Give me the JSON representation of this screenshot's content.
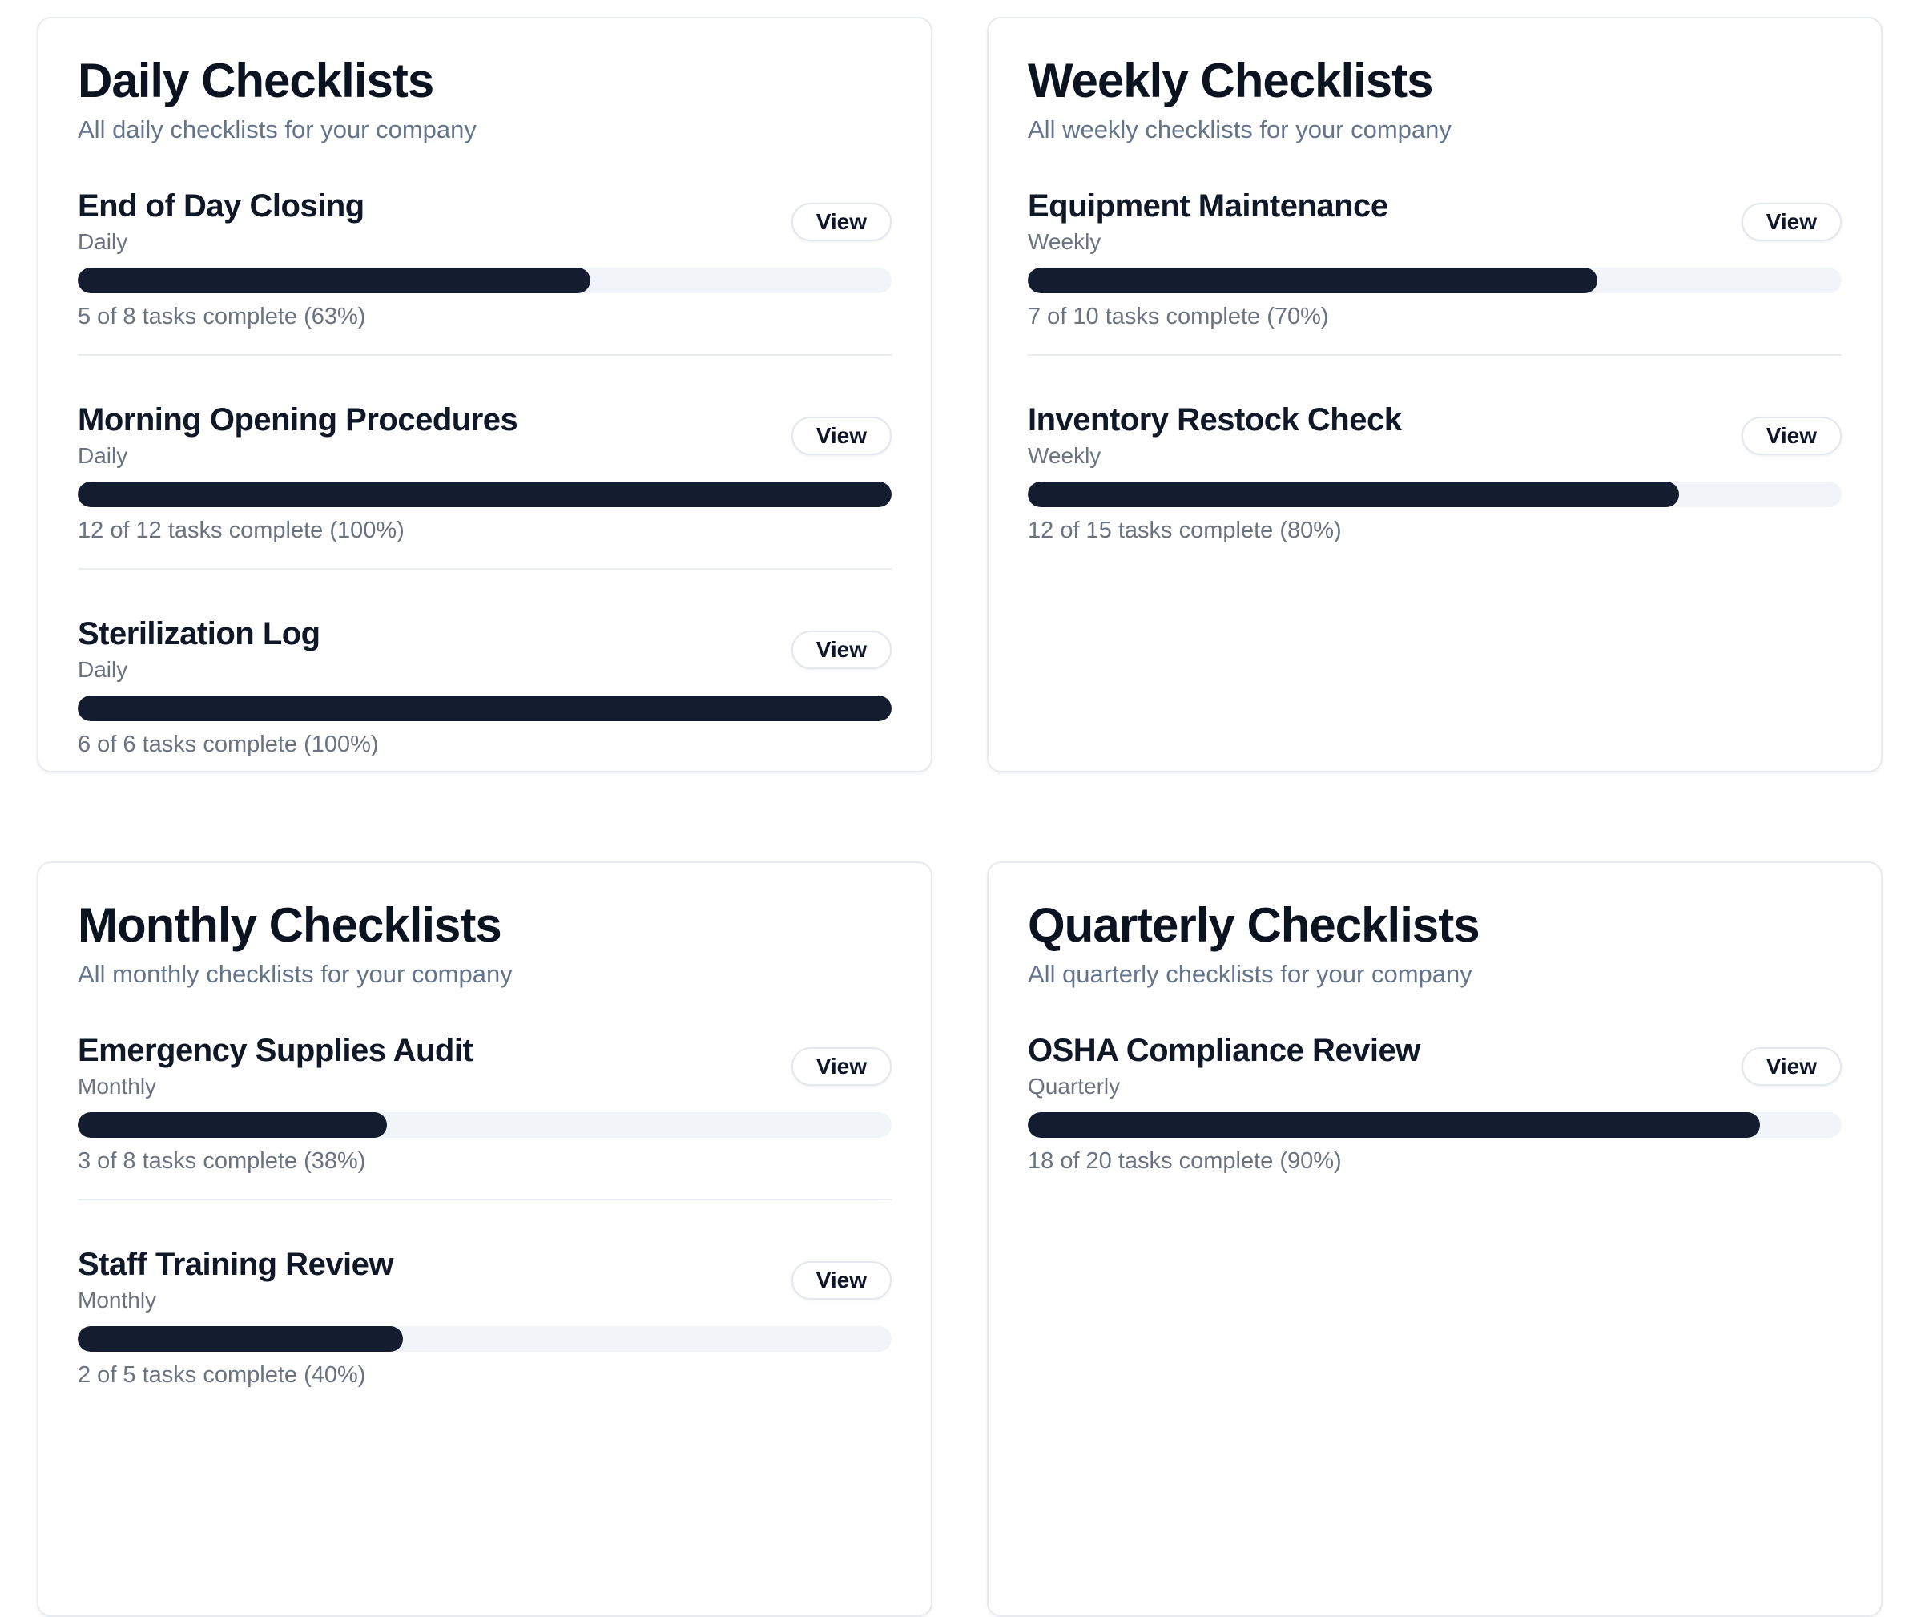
{
  "colors": {
    "page_background": "#ffffff",
    "card_border": "#e7eaef",
    "title_text": "#0b1220",
    "muted_text": "#64748b",
    "secondary_text": "#6b7280",
    "progress_fill": "#141d30",
    "progress_track": "#f1f5f9",
    "divider": "#e9edf1"
  },
  "cards": [
    {
      "title": "Daily Checklists",
      "description": "All daily checklists for your company",
      "items": [
        {
          "name": "End of Day Closing",
          "frequency": "Daily",
          "percent": 63,
          "status": "5 of 8 tasks complete (63%)",
          "view_label": "View"
        },
        {
          "name": "Morning Opening Procedures",
          "frequency": "Daily",
          "percent": 100,
          "status": "12 of 12 tasks complete (100%)",
          "view_label": "View"
        },
        {
          "name": "Sterilization Log",
          "frequency": "Daily",
          "percent": 100,
          "status": "6 of 6 tasks complete (100%)",
          "view_label": "View"
        }
      ]
    },
    {
      "title": "Weekly Checklists",
      "description": "All weekly checklists for your company",
      "items": [
        {
          "name": "Equipment Maintenance",
          "frequency": "Weekly",
          "percent": 70,
          "status": "7 of 10 tasks complete (70%)",
          "view_label": "View"
        },
        {
          "name": "Inventory Restock Check",
          "frequency": "Weekly",
          "percent": 80,
          "status": "12 of 15 tasks complete (80%)",
          "view_label": "View"
        }
      ]
    },
    {
      "title": "Monthly Checklists",
      "description": "All monthly checklists for your company",
      "items": [
        {
          "name": "Emergency Supplies Audit",
          "frequency": "Monthly",
          "percent": 38,
          "status": "3 of 8 tasks complete (38%)",
          "view_label": "View"
        },
        {
          "name": "Staff Training Review",
          "frequency": "Monthly",
          "percent": 40,
          "status": "2 of 5 tasks complete (40%)",
          "view_label": "View"
        }
      ]
    },
    {
      "title": "Quarterly Checklists",
      "description": "All quarterly checklists for your company",
      "items": [
        {
          "name": "OSHA Compliance Review",
          "frequency": "Quarterly",
          "percent": 90,
          "status": "18 of 20 tasks complete (90%)",
          "view_label": "View"
        }
      ]
    }
  ]
}
